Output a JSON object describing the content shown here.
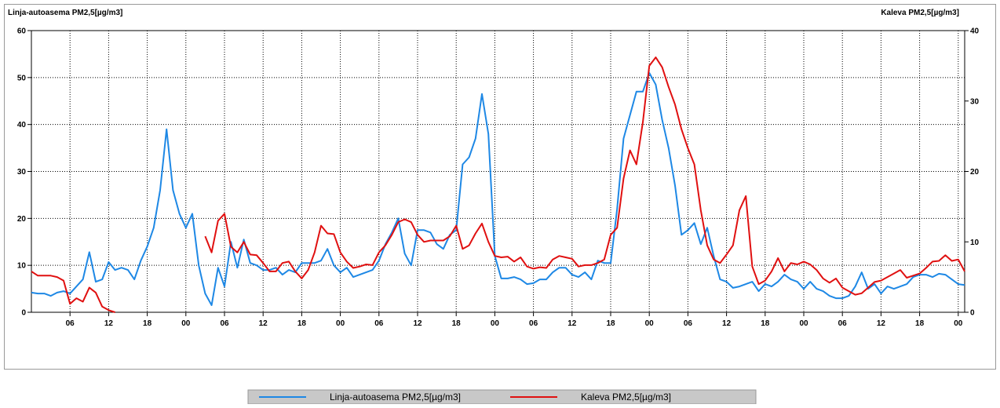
{
  "chart_data": {
    "type": "line",
    "y_label": "Linja-autoasema PM2,5[µg/m3]",
    "y2_label": "Kaleva PM2,5[µg/m3]",
    "xlim": [
      0,
      145
    ],
    "xticks": [
      {
        "value": 6,
        "label": "06"
      },
      12,
      18,
      {
        "value": 24,
        "label": "00"
      },
      {
        "value": 30,
        "label": "06"
      },
      {
        "value": 36,
        "label": "12"
      },
      {
        "value": 42,
        "label": "18"
      },
      {
        "value": 48,
        "label": "00"
      },
      {
        "value": 54,
        "label": "06"
      },
      {
        "value": 60,
        "label": "12"
      },
      {
        "value": 66,
        "label": "18"
      },
      {
        "value": 72,
        "label": "00"
      },
      {
        "value": 78,
        "label": "06"
      },
      {
        "value": 84,
        "label": "12"
      },
      {
        "value": 90,
        "label": "18"
      },
      {
        "value": 96,
        "label": "00"
      },
      {
        "value": 102,
        "label": "06"
      },
      {
        "value": 108,
        "label": "12"
      },
      {
        "value": 114,
        "label": "18"
      },
      {
        "value": 120,
        "label": "00"
      },
      {
        "value": 126,
        "label": "06"
      },
      {
        "value": 132,
        "label": "12"
      },
      {
        "value": 138,
        "label": "18"
      },
      {
        "value": 144,
        "label": "00"
      }
    ],
    "ylim": [
      0,
      60
    ],
    "yticks": [
      0,
      10,
      20,
      30,
      40,
      50,
      60
    ],
    "y2lim": [
      0,
      40
    ],
    "y2ticks": [
      0,
      10,
      20,
      30,
      40
    ],
    "grid": true,
    "legend": "bottom",
    "x": [
      0,
      1,
      2,
      3,
      4,
      5,
      6,
      7,
      8,
      9,
      10,
      11,
      12,
      13,
      14,
      15,
      16,
      17,
      18,
      19,
      20,
      21,
      22,
      23,
      24,
      25,
      26,
      27,
      28,
      29,
      30,
      31,
      32,
      33,
      34,
      35,
      36,
      37,
      38,
      39,
      40,
      41,
      42,
      43,
      44,
      45,
      46,
      47,
      48,
      49,
      50,
      51,
      52,
      53,
      54,
      55,
      56,
      57,
      58,
      59,
      60,
      61,
      62,
      63,
      64,
      65,
      66,
      67,
      68,
      69,
      70,
      71,
      72,
      73,
      74,
      75,
      76,
      77,
      78,
      79,
      80,
      81,
      82,
      83,
      84,
      85,
      86,
      87,
      88,
      89,
      90,
      91,
      92,
      93,
      94,
      95,
      96,
      97,
      98,
      99,
      100,
      101,
      102,
      103,
      104,
      105,
      106,
      107,
      108,
      109,
      110,
      111,
      112,
      113,
      114,
      115,
      116,
      117,
      118,
      119,
      120,
      121,
      122,
      123,
      124,
      125,
      126,
      127,
      128,
      129,
      130,
      131,
      132,
      133,
      134,
      135,
      136,
      137,
      138,
      139,
      140,
      141,
      142,
      143,
      144,
      145
    ],
    "series": [
      {
        "name": "Linja-autoasema PM2,5[µg/m3]",
        "color": "#1e88e5",
        "axis": "y",
        "values": [
          4.2,
          4,
          4,
          3.5,
          4.2,
          4.5,
          4,
          5.5,
          7,
          12.8,
          6.5,
          7,
          10.7,
          9,
          9.5,
          9,
          7,
          11,
          14,
          18,
          26,
          39,
          26,
          21,
          18,
          21,
          10,
          4,
          1.5,
          9.5,
          5.5,
          15,
          9.5,
          15.5,
          10.5,
          10,
          9,
          9,
          9.5,
          8,
          9,
          8.5,
          10.5,
          10.5,
          10.5,
          11,
          13.5,
          10,
          8.5,
          9.5,
          7.5,
          8,
          8.5,
          9,
          11,
          14.5,
          17,
          20,
          12.5,
          10,
          17.5,
          17.5,
          17,
          14.5,
          13.5,
          16.5,
          17.5,
          31.5,
          33,
          37,
          46.5,
          38,
          12,
          7.2,
          7.2,
          7.5,
          7,
          6,
          6.2,
          7,
          7,
          8.5,
          9.5,
          9.5,
          8,
          7.5,
          8.5,
          7,
          11,
          10.5,
          10.5,
          22,
          37,
          42,
          47,
          47,
          51,
          48.5,
          41,
          35,
          27,
          16.5,
          17.5,
          19,
          14.5,
          18,
          12,
          7,
          6.5,
          5.2,
          5.5,
          6,
          6.5,
          4.5,
          6,
          5.5,
          6.5,
          8,
          7,
          6.5,
          5,
          6.5,
          5,
          4.5,
          3.5,
          3,
          3,
          3.5,
          5.5,
          8.5,
          5,
          6,
          4,
          5.5,
          5,
          5.5,
          6,
          7.5,
          8,
          8,
          7.5,
          8.2,
          8,
          7,
          6,
          5.8
        ]
      },
      {
        "name": "Kaleva PM2,5[µg/m3]",
        "color": "#e01010",
        "axis": "y2",
        "values": [
          5.8,
          5.2,
          5.2,
          5.2,
          5,
          4.5,
          1.2,
          2,
          1.5,
          3.5,
          2.8,
          0.8,
          0.3,
          0,
          null,
          null,
          null,
          null,
          null,
          null,
          null,
          null,
          null,
          null,
          null,
          null,
          null,
          10.8,
          8.5,
          13,
          14,
          9.3,
          8.5,
          10,
          8.2,
          8.1,
          7,
          5.8,
          5.8,
          7,
          7.2,
          5.8,
          4.8,
          6,
          8.5,
          12.3,
          11.2,
          11.1,
          8.5,
          7.2,
          6.3,
          6.5,
          6.8,
          6.7,
          8.5,
          9.5,
          11,
          12.8,
          13.2,
          12.8,
          11,
          10,
          10.2,
          10.2,
          10.2,
          10.8,
          12.3,
          9,
          9.5,
          11.2,
          12.6,
          10,
          8,
          7.8,
          7.9,
          7.2,
          7.8,
          6.5,
          6.2,
          6.4,
          6.3,
          7.5,
          8,
          7.8,
          7.6,
          6.5,
          6.7,
          6.7,
          7,
          7.5,
          11,
          12,
          19,
          23,
          21,
          27,
          35,
          36.2,
          34.8,
          32,
          29.5,
          26,
          23.3,
          21,
          14.5,
          9.5,
          7.5,
          7,
          8.2,
          9.5,
          14.5,
          16.5,
          6.5,
          4,
          4.5,
          5.8,
          7.7,
          5.8,
          7,
          6.8,
          7.2,
          6.8,
          6,
          4.8,
          4.2,
          4.8,
          3.5,
          3,
          2.5,
          2.7,
          3.5,
          4.3,
          4.5,
          5,
          5.5,
          6,
          4.9,
          5.2,
          5.5,
          6.3,
          7.2,
          7.3,
          8.1,
          7.3,
          7.5,
          5.8
        ]
      }
    ]
  }
}
